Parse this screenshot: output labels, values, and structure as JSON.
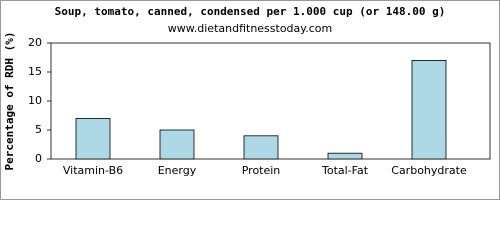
{
  "chart_data": {
    "type": "bar",
    "title": "Soup, tomato, canned, condensed per 1.000 cup (or 148.00 g)",
    "subtitle": "www.dietandfitnesstoday.com",
    "y_label": "Percentage of RDH (%)",
    "categories": [
      "Vitamin-B6",
      "Energy",
      "Protein",
      "Total-Fat",
      "Carbohydrate"
    ],
    "values": [
      7,
      5,
      4,
      1,
      17
    ],
    "color": "#add8e6",
    "ylim": [
      0,
      20
    ],
    "yticks": [
      0,
      5,
      10,
      15,
      20
    ],
    "grid": false
  }
}
